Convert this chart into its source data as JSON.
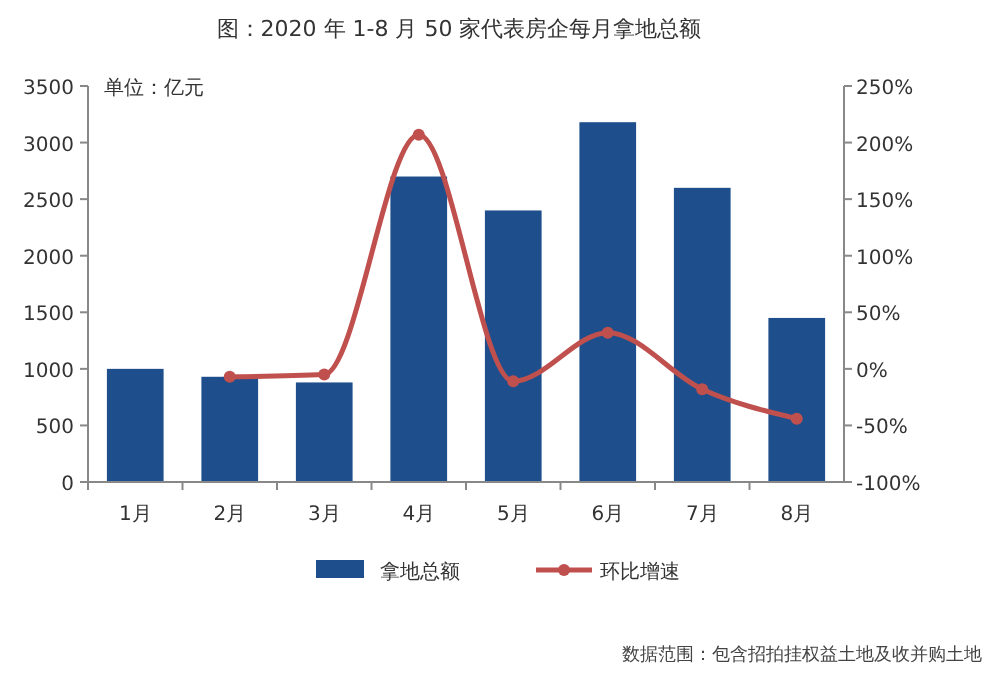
{
  "chart_data": {
    "type": "bar",
    "title": "图：2020 年 1-8 月 50 家代表房企每月拿地总额",
    "categories": [
      "1月",
      "2月",
      "3月",
      "4月",
      "5月",
      "6月",
      "7月",
      "8月"
    ],
    "series": [
      {
        "name": "拿地总额",
        "color": "#1f4e8c",
        "values": [
          1000,
          930,
          880,
          2700,
          2400,
          3180,
          2600,
          1450
        ]
      },
      {
        "name": "环比增速",
        "type": "line",
        "axis": "y2",
        "color": "#c0504d",
        "marker": "circle",
        "values": [
          null,
          -7,
          -5,
          207,
          -11,
          32,
          -18,
          -44
        ]
      }
    ],
    "ylim": [
      0,
      3500
    ],
    "yticks": [
      0,
      500,
      1000,
      1500,
      2000,
      2500,
      3000,
      3500
    ],
    "y2lim": [
      -100,
      250
    ],
    "y2ticks": [
      {
        "value": -100,
        "label": "-100%"
      },
      {
        "value": -50,
        "label": "-50%"
      },
      {
        "value": 0,
        "label": "0%"
      },
      {
        "value": 50,
        "label": "50%"
      },
      {
        "value": 100,
        "label": "100%"
      },
      {
        "value": 150,
        "label": "150%"
      },
      {
        "value": 200,
        "label": "200%"
      },
      {
        "value": 250,
        "label": "250%"
      }
    ],
    "annotations": [
      "单位：亿元",
      "数据范围：包含招拍挂权益土地及收并购土地"
    ],
    "legend": "bottom",
    "grid": false
  }
}
